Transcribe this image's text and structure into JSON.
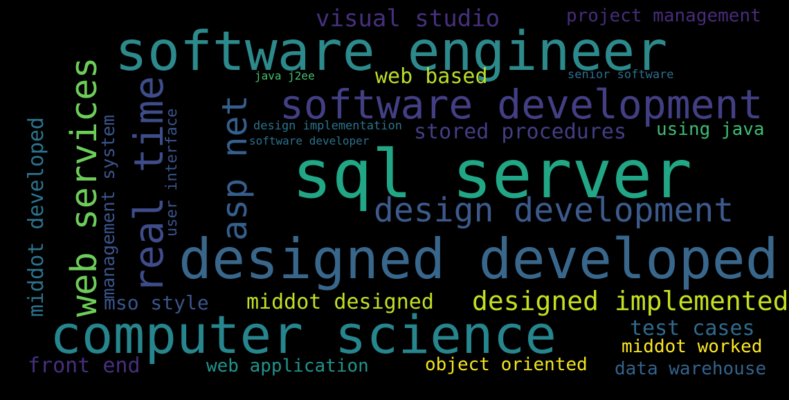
{
  "words": [
    {
      "text": "software engineer",
      "color": "#2d8a8c"
    },
    {
      "text": "sql server",
      "color": "#22a786"
    },
    {
      "text": "designed developed",
      "color": "#39678c"
    },
    {
      "text": "computer science",
      "color": "#26858d"
    },
    {
      "text": "software development",
      "color": "#433f85"
    },
    {
      "text": "web services",
      "color": "#6dcd59"
    },
    {
      "text": "real time",
      "color": "#3e4c8a"
    },
    {
      "text": "asp net",
      "color": "#355f8d"
    },
    {
      "text": "design development",
      "color": "#3c5a8c"
    },
    {
      "text": "designed implemented",
      "color": "#c5e021"
    },
    {
      "text": "middot designed",
      "color": "#c2df23"
    },
    {
      "text": "middot developed",
      "color": "#2c738e"
    },
    {
      "text": "management system",
      "color": "#3a548c"
    },
    {
      "text": "visual studio",
      "color": "#46307e"
    },
    {
      "text": "project management",
      "color": "#472c7a"
    },
    {
      "text": "web based",
      "color": "#bade28"
    },
    {
      "text": "stored procedures",
      "color": "#433e85"
    },
    {
      "text": "using java",
      "color": "#3dbc74"
    },
    {
      "text": "test cases",
      "color": "#2f6b8e"
    },
    {
      "text": "middot worked",
      "color": "#fde725"
    },
    {
      "text": "mso style",
      "color": "#3a548c"
    },
    {
      "text": "front end",
      "color": "#46307e"
    },
    {
      "text": "web application",
      "color": "#1f948c"
    },
    {
      "text": "object oriented",
      "color": "#f1e51d"
    },
    {
      "text": "data warehouse",
      "color": "#33638d"
    },
    {
      "text": "user interface",
      "color": "#3a538b"
    },
    {
      "text": "java j2ee",
      "color": "#48c16e"
    },
    {
      "text": "senior software",
      "color": "#2e6e8e"
    },
    {
      "text": "design implementation",
      "color": "#2b758e"
    },
    {
      "text": "software developer",
      "color": "#2c718e"
    }
  ]
}
